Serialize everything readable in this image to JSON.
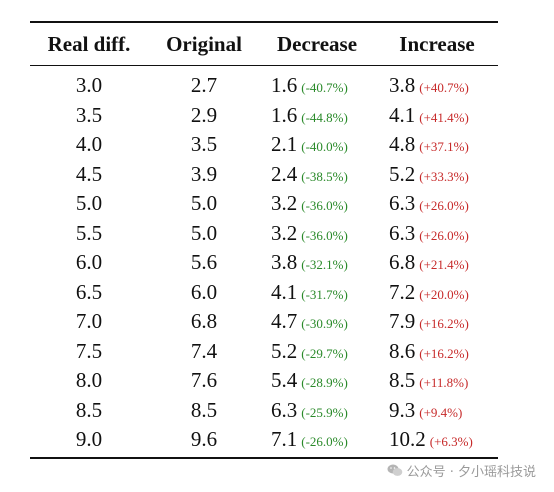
{
  "table": {
    "headers": {
      "real": "Real diff.",
      "original": "Original",
      "decrease": "Decrease",
      "increase": "Increase"
    },
    "rows": [
      {
        "real": "3.0",
        "original": "2.7",
        "dec": "1.6",
        "dec_pct": "(-40.7%)",
        "inc": "3.8",
        "inc_pct": "(+40.7%)"
      },
      {
        "real": "3.5",
        "original": "2.9",
        "dec": "1.6",
        "dec_pct": "(-44.8%)",
        "inc": "4.1",
        "inc_pct": "(+41.4%)"
      },
      {
        "real": "4.0",
        "original": "3.5",
        "dec": "2.1",
        "dec_pct": "(-40.0%)",
        "inc": "4.8",
        "inc_pct": "(+37.1%)"
      },
      {
        "real": "4.5",
        "original": "3.9",
        "dec": "2.4",
        "dec_pct": "(-38.5%)",
        "inc": "5.2",
        "inc_pct": "(+33.3%)"
      },
      {
        "real": "5.0",
        "original": "5.0",
        "dec": "3.2",
        "dec_pct": "(-36.0%)",
        "inc": "6.3",
        "inc_pct": "(+26.0%)"
      },
      {
        "real": "5.5",
        "original": "5.0",
        "dec": "3.2",
        "dec_pct": "(-36.0%)",
        "inc": "6.3",
        "inc_pct": "(+26.0%)"
      },
      {
        "real": "6.0",
        "original": "5.6",
        "dec": "3.8",
        "dec_pct": "(-32.1%)",
        "inc": "6.8",
        "inc_pct": "(+21.4%)"
      },
      {
        "real": "6.5",
        "original": "6.0",
        "dec": "4.1",
        "dec_pct": "(-31.7%)",
        "inc": "7.2",
        "inc_pct": "(+20.0%)"
      },
      {
        "real": "7.0",
        "original": "6.8",
        "dec": "4.7",
        "dec_pct": "(-30.9%)",
        "inc": "7.9",
        "inc_pct": "(+16.2%)"
      },
      {
        "real": "7.5",
        "original": "7.4",
        "dec": "5.2",
        "dec_pct": "(-29.7%)",
        "inc": "8.6",
        "inc_pct": "(+16.2%)"
      },
      {
        "real": "8.0",
        "original": "7.6",
        "dec": "5.4",
        "dec_pct": "(-28.9%)",
        "inc": "8.5",
        "inc_pct": "(+11.8%)"
      },
      {
        "real": "8.5",
        "original": "8.5",
        "dec": "6.3",
        "dec_pct": "(-25.9%)",
        "inc": "9.3",
        "inc_pct": "(+9.4%)"
      },
      {
        "real": "9.0",
        "original": "9.6",
        "dec": "7.1",
        "dec_pct": "(-26.0%)",
        "inc": "10.2",
        "inc_pct": "(+6.3%)"
      }
    ]
  },
  "colors": {
    "decrease_pct": "#2a8a2a",
    "increase_pct": "#c72a2a"
  },
  "watermark": {
    "icon": "wechat-icon",
    "text": "公众号 · 夕小瑶科技说"
  }
}
